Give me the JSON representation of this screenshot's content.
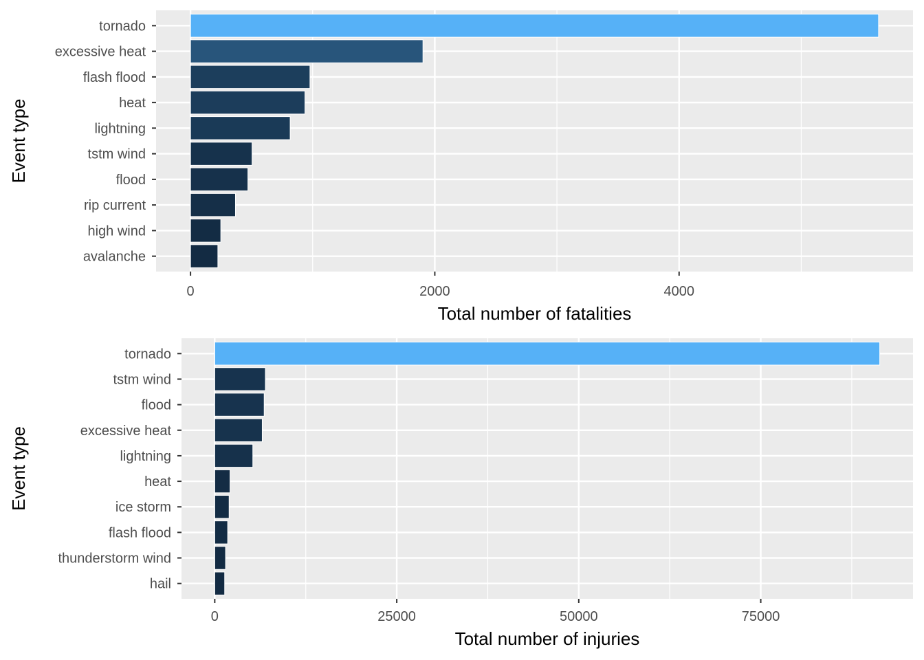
{
  "chart_data": [
    {
      "type": "bar",
      "orientation": "horizontal",
      "categories": [
        "tornado",
        "excessive heat",
        "flash flood",
        "heat",
        "lightning",
        "tstm wind",
        "flood",
        "rip current",
        "high wind",
        "avalanche"
      ],
      "values": [
        5633,
        1903,
        978,
        937,
        816,
        504,
        470,
        368,
        248,
        224
      ],
      "xlabel": "Total number of fatalities",
      "ylabel": "Event type",
      "xticks": [
        0,
        2000,
        4000
      ],
      "xlim": [
        -282,
        5915
      ],
      "grid": true,
      "legend": "none",
      "fill_low": "#132b43",
      "fill_high": "#56b1f7"
    },
    {
      "type": "bar",
      "orientation": "horizontal",
      "categories": [
        "tornado",
        "tstm wind",
        "flood",
        "excessive heat",
        "lightning",
        "heat",
        "ice storm",
        "flash flood",
        "thunderstorm wind",
        "hail"
      ],
      "values": [
        91346,
        6957,
        6789,
        6525,
        5230,
        2100,
        1975,
        1777,
        1488,
        1361
      ],
      "xlabel": "Total number of injuries",
      "ylabel": "Event type",
      "xticks": [
        0,
        25000,
        50000,
        75000
      ],
      "xlim": [
        -4567,
        95913
      ],
      "grid": true,
      "legend": "none",
      "fill_low": "#132b43",
      "fill_high": "#56b1f7"
    }
  ]
}
